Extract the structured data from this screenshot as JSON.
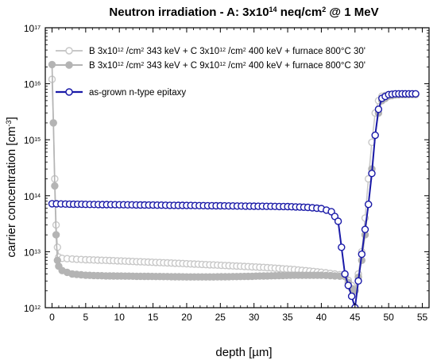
{
  "chart_data": {
    "type": "scatter",
    "title": "Neutron irradiation - A: 3x10^14 neq/cm^2 @ 1 MeV",
    "xlabel": "depth [µm]",
    "ylabel": "carrier concentration [cm^-3]",
    "xlim": [
      -1,
      56
    ],
    "ylim": [
      1000000000000.0,
      1e+17
    ],
    "yscale": "log",
    "x_ticks": [
      "0",
      "5",
      "10",
      "15",
      "20",
      "25",
      "30",
      "35",
      "40",
      "45",
      "50",
      "55"
    ],
    "y_ticks": [
      "10^12",
      "10^13",
      "10^14",
      "10^15",
      "10^16",
      "10^17"
    ],
    "legend_position": "top-left",
    "series": [
      {
        "name": "B 3x10^12 /cm^2 343 keV + C 3x10^12 /cm^2 400 keV + furnace 800°C 30'",
        "marker": "open-circle",
        "color": "#c8c8c8",
        "points": [
          [
            0.0,
            1.2e+16
          ],
          [
            0.2,
            2000000000000000.0
          ],
          [
            0.4,
            200000000000000.0
          ],
          [
            0.6,
            30000000000000.0
          ],
          [
            0.8,
            12000000000000.0
          ],
          [
            1.0,
            8000000000000.0
          ],
          [
            1.5,
            7600000000000.0
          ],
          [
            3,
            7400000000000.0
          ],
          [
            5,
            7200000000000.0
          ],
          [
            8,
            7000000000000.0
          ],
          [
            12,
            6700000000000.0
          ],
          [
            16,
            6400000000000.0
          ],
          [
            20,
            6100000000000.0
          ],
          [
            24,
            5800000000000.0
          ],
          [
            28,
            5500000000000.0
          ],
          [
            32,
            5200000000000.0
          ],
          [
            36,
            4800000000000.0
          ],
          [
            40,
            4300000000000.0
          ],
          [
            42,
            4000000000000.0
          ],
          [
            43.5,
            3800000000000.0
          ],
          [
            44.5,
            2500000000000.0
          ],
          [
            45.0,
            2000000000000.0
          ],
          [
            45.5,
            4000000000000.0
          ],
          [
            46.0,
            10000000000000.0
          ],
          [
            46.5,
            40000000000000.0
          ],
          [
            47.0,
            200000000000000.0
          ],
          [
            47.5,
            900000000000000.0
          ],
          [
            48.0,
            3000000000000000.0
          ],
          [
            48.5,
            5000000000000000.0
          ],
          [
            49.0,
            6000000000000000.0
          ],
          [
            50.0,
            6400000000000000.0
          ],
          [
            51.0,
            6500000000000000.0
          ],
          [
            52.0,
            6500000000000000.0
          ],
          [
            53.0,
            6500000000000000.0
          ],
          [
            54.0,
            6500000000000000.0
          ]
        ]
      },
      {
        "name": "B 3x10^12 /cm^2 343 keV + C 9x10^12 /cm^2 400 keV + furnace 800°C 30'",
        "marker": "filled-circle",
        "color": "#b4b4b4",
        "points": [
          [
            0.0,
            2.2e+16
          ],
          [
            0.2,
            2000000000000000.0
          ],
          [
            0.4,
            150000000000000.0
          ],
          [
            0.6,
            20000000000000.0
          ],
          [
            0.8,
            7000000000000.0
          ],
          [
            1.0,
            5500000000000.0
          ],
          [
            1.5,
            4600000000000.0
          ],
          [
            3,
            4000000000000.0
          ],
          [
            5,
            3800000000000.0
          ],
          [
            8,
            3700000000000.0
          ],
          [
            12,
            3650000000000.0
          ],
          [
            16,
            3600000000000.0
          ],
          [
            20,
            3550000000000.0
          ],
          [
            24,
            3550000000000.0
          ],
          [
            28,
            3600000000000.0
          ],
          [
            32,
            3700000000000.0
          ],
          [
            36,
            3800000000000.0
          ],
          [
            40,
            3800000000000.0
          ],
          [
            42,
            3700000000000.0
          ],
          [
            43.5,
            3600000000000.0
          ],
          [
            44.5,
            2200000000000.0
          ],
          [
            45.0,
            2000000000000.0
          ],
          [
            45.5,
            3500000000000.0
          ],
          [
            46.0,
            7000000000000.0
          ],
          [
            46.5,
            20000000000000.0
          ],
          [
            47.0,
            70000000000000.0
          ],
          [
            47.5,
            300000000000000.0
          ],
          [
            48.0,
            1200000000000000.0
          ],
          [
            48.5,
            3000000000000000.0
          ],
          [
            49.0,
            5000000000000000.0
          ],
          [
            50.0,
            6000000000000000.0
          ],
          [
            51.0,
            6300000000000000.0
          ],
          [
            52.0,
            6400000000000000.0
          ],
          [
            53.0,
            6400000000000000.0
          ],
          [
            54.0,
            6400000000000000.0
          ]
        ]
      },
      {
        "name": "as-grown n-type epitaxy",
        "marker": "open-circle",
        "color": "#1a1aa8",
        "points": [
          [
            0.0,
            72000000000000.0
          ],
          [
            2,
            71000000000000.0
          ],
          [
            5,
            70000000000000.0
          ],
          [
            10,
            69000000000000.0
          ],
          [
            15,
            68000000000000.0
          ],
          [
            20,
            67000000000000.0
          ],
          [
            25,
            66000000000000.0
          ],
          [
            30,
            65000000000000.0
          ],
          [
            35,
            64000000000000.0
          ],
          [
            38,
            62000000000000.0
          ],
          [
            40,
            59000000000000.0
          ],
          [
            41.5,
            52000000000000.0
          ],
          [
            42.5,
            35000000000000.0
          ],
          [
            43.0,
            12000000000000.0
          ],
          [
            43.5,
            4000000000000.0
          ],
          [
            44.0,
            2500000000000.0
          ],
          [
            44.5,
            1600000000000.0
          ],
          [
            45.0,
            1000000000000.0
          ],
          [
            45.5,
            3000000000000.0
          ],
          [
            46.0,
            9000000000000.0
          ],
          [
            46.5,
            25000000000000.0
          ],
          [
            47.0,
            70000000000000.0
          ],
          [
            47.5,
            250000000000000.0
          ],
          [
            48.0,
            1200000000000000.0
          ],
          [
            48.5,
            3500000000000000.0
          ],
          [
            49.0,
            5500000000000000.0
          ],
          [
            50.0,
            6400000000000000.0
          ],
          [
            51.0,
            6600000000000000.0
          ],
          [
            52.0,
            6600000000000000.0
          ],
          [
            53.0,
            6600000000000000.0
          ],
          [
            54.0,
            6600000000000000.0
          ]
        ]
      }
    ]
  }
}
